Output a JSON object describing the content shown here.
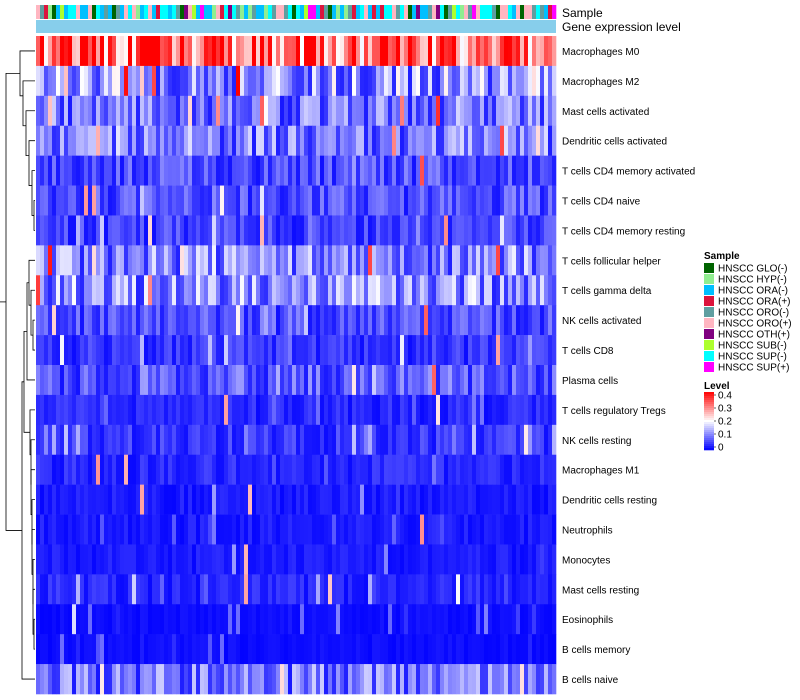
{
  "chart_data": {
    "type": "heatmap",
    "title": "",
    "annotation_rows": [
      "Sample",
      "Gene expression level"
    ],
    "row_labels": [
      "Macrophages M0",
      "Macrophages M2",
      "Mast cells activated",
      "Dendritic cells activated",
      "T cells CD4 memory activated",
      "T cells CD4 naive",
      "T cells CD4 memory resting",
      "T cells follicular helper",
      "T cells gamma delta",
      "NK cells activated",
      "T cells CD8",
      "Plasma cells",
      "T cells regulatory  Tregs",
      "NK cells resting",
      "Macrophages M1",
      "Dendritic cells resting",
      "Neutrophils",
      "Monocytes",
      "Mast cells resting",
      "Eosinophils",
      "B cells memory",
      "B cells naive"
    ],
    "row_mean_level": [
      0.32,
      0.12,
      0.09,
      0.1,
      0.06,
      0.06,
      0.05,
      0.1,
      0.11,
      0.06,
      0.04,
      0.07,
      0.03,
      0.04,
      0.03,
      0.02,
      0.02,
      0.02,
      0.03,
      0.01,
      0.01,
      0.09
    ],
    "n_samples": 130,
    "color_scale": {
      "title": "Level",
      "ticks": [
        "0.4",
        "0.3",
        "0.2",
        "0.1",
        "0"
      ],
      "range": [
        0,
        0.4
      ],
      "colors": [
        "#0000ff",
        "#ffffff",
        "#ff0000"
      ]
    },
    "sample_legend": {
      "title": "Sample",
      "items": [
        {
          "label": "HNSCC GLO(-)",
          "color": "#006400"
        },
        {
          "label": "HNSCC HYP(-)",
          "color": "#90ee90"
        },
        {
          "label": "HNSCC ORA(-)",
          "color": "#00bfff"
        },
        {
          "label": "HNSCC ORA(+)",
          "color": "#dc143c"
        },
        {
          "label": "HNSCC ORO(-)",
          "color": "#5f9ea0"
        },
        {
          "label": "HNSCC ORO(+)",
          "color": "#ffb6c1"
        },
        {
          "label": "HNSCC OTH(+)",
          "color": "#800080"
        },
        {
          "label": "HNSCC SUB(-)",
          "color": "#adff2f"
        },
        {
          "label": "HNSCC SUP(-)",
          "color": "#00ffff"
        },
        {
          "label": "HNSCC SUP(+)",
          "color": "#ff00ff"
        }
      ]
    },
    "gene_expression_bar_color": "#87ceeb"
  }
}
